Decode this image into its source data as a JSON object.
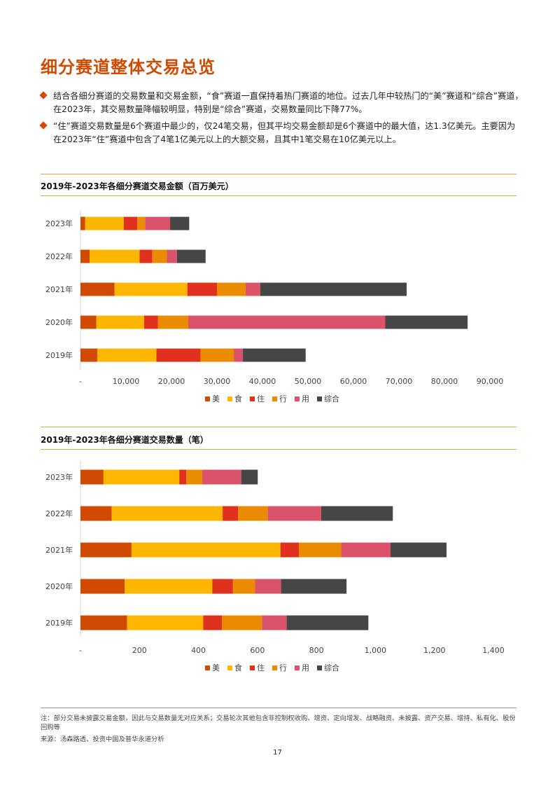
{
  "page_title": "细分赛道整体交易总览",
  "bullets": [
    "结合各细分赛道的交易数量和交易金额，“食”赛道一直保持着热门赛道的地位。过去几年中较热门的“美”赛道和“综合”赛道，在2023年，其交易数量降幅较明显，特别是“综合”赛道，交易数量同比下降77%。",
    "“住”赛道交易数量是6个赛道中最少的，仅24笔交易，但其平均交易金额却是6个赛道中的最大值，达1.3亿美元。主要因为在2023年“住”赛道中包含了4笔1亿美元以上的大额交易，且其中1笔交易在10亿美元以上。"
  ],
  "colors": {
    "accent": "#d04a02",
    "rule": "#e8a23a",
    "美": "#d04a02",
    "食": "#ffb600",
    "住": "#e0301e",
    "行": "#eb8c00",
    "用": "#db536a",
    "综合": "#464646"
  },
  "chart_data": [
    {
      "type": "bar",
      "orientation": "horizontal",
      "stacked": true,
      "title": "2019年-2023年各细分赛道交易金额（百万美元）",
      "categories": [
        "2023年",
        "2022年",
        "2021年",
        "2020年",
        "2019年"
      ],
      "series": [
        {
          "name": "美",
          "values": [
            1000,
            2000,
            7500,
            3500,
            3700
          ]
        },
        {
          "name": "食",
          "values": [
            8500,
            11000,
            16000,
            10500,
            13000
          ]
        },
        {
          "name": "住",
          "values": [
            3000,
            2800,
            6500,
            3000,
            9700
          ]
        },
        {
          "name": "行",
          "values": [
            1700,
            3200,
            6300,
            6700,
            7300
          ]
        },
        {
          "name": "用",
          "values": [
            5500,
            2200,
            3200,
            43300,
            2000
          ]
        },
        {
          "name": "综合",
          "values": [
            4200,
            6300,
            32200,
            18100,
            13800
          ]
        }
      ],
      "xlim": [
        0,
        90000
      ],
      "tick_labels": [
        "-",
        "10,000",
        "20,000",
        "30,000",
        "40,000",
        "50,000",
        "60,000",
        "70,000",
        "80,000",
        "90,000"
      ],
      "grid": false,
      "legend": "bottom"
    },
    {
      "type": "bar",
      "orientation": "horizontal",
      "stacked": true,
      "title": "2019年-2023年各细分赛道交易数量（笔）",
      "categories": [
        "2023年",
        "2022年",
        "2021年",
        "2020年",
        "2019年"
      ],
      "series": [
        {
          "name": "美",
          "values": [
            78,
            106,
            173,
            150,
            158
          ]
        },
        {
          "name": "食",
          "values": [
            257,
            376,
            505,
            297,
            258
          ]
        },
        {
          "name": "住",
          "values": [
            24,
            52,
            63,
            70,
            64
          ]
        },
        {
          "name": "行",
          "values": [
            54,
            101,
            143,
            75,
            135
          ]
        },
        {
          "name": "用",
          "values": [
            132,
            181,
            167,
            88,
            84
          ]
        },
        {
          "name": "综合",
          "values": [
            56,
            243,
            190,
            222,
            277
          ]
        }
      ],
      "xlim": [
        0,
        1400
      ],
      "tick_labels": [
        "-",
        "200",
        "400",
        "600",
        "800",
        "1,000",
        "1,200",
        "1,400"
      ],
      "grid": false,
      "legend": "bottom"
    }
  ],
  "footnote": "注：部分交易未披露交易金额，因此与交易数量无对应关系；交易轮次其他包含非控制权收购、增资、定向增发、战略融资、未披露、资产交易、增持、私有化、股份回购等",
  "source": "来源：汤森路透、投资中国及普华永道分析",
  "page_number": "17"
}
